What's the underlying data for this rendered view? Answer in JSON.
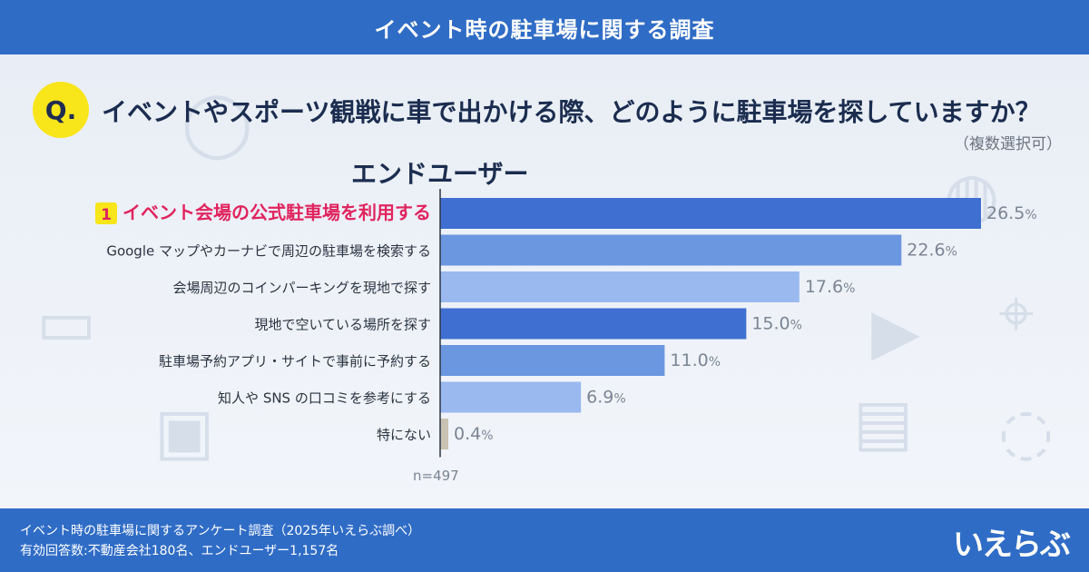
{
  "header": {
    "title": "イベント時の駐車場に関する調査"
  },
  "question": {
    "badge": "Q.",
    "text": "イベントやスポーツ観戦に車で出かける際、どのように駐車場を探していますか？",
    "note": "（複数選択可）"
  },
  "segment_label": "エンドユーザー",
  "chart_data": {
    "type": "bar",
    "orientation": "horizontal",
    "categories": [
      "イベント会場の公式駐車場を利用する",
      "Google マップやカーナビで周辺の駐車場を検索する",
      "会場周辺のコインパーキングを現地で探す",
      "現地で空いている場所を探す",
      "駐車場予約アプリ・サイトで事前に予約する",
      "知人や SNS の口コミを参考にする",
      "特にない"
    ],
    "values": [
      26.5,
      22.6,
      17.6,
      15.0,
      11.0,
      6.9,
      0.4
    ],
    "value_labels": [
      "26.5",
      "22.6",
      "17.6",
      "15.0",
      "11.0",
      "6.9",
      "0.4"
    ],
    "unit": "%",
    "rank_badge": "1",
    "highlight_color": "#e0245e",
    "bar_colors": [
      "#3f6fd1",
      "#6b96e0",
      "#9ab9ef",
      "#3f6fd1",
      "#6b96e0",
      "#9ab9ef",
      "#c9c2b2"
    ],
    "n_label": "n=497"
  },
  "footer": {
    "line1": "イベント時の駐車場に関するアンケート調査（2025年いえらぶ調べ）",
    "line2": "有効回答数:不動産会社180名、エンドユーザー1,157名",
    "logo": "いえらぶ"
  }
}
